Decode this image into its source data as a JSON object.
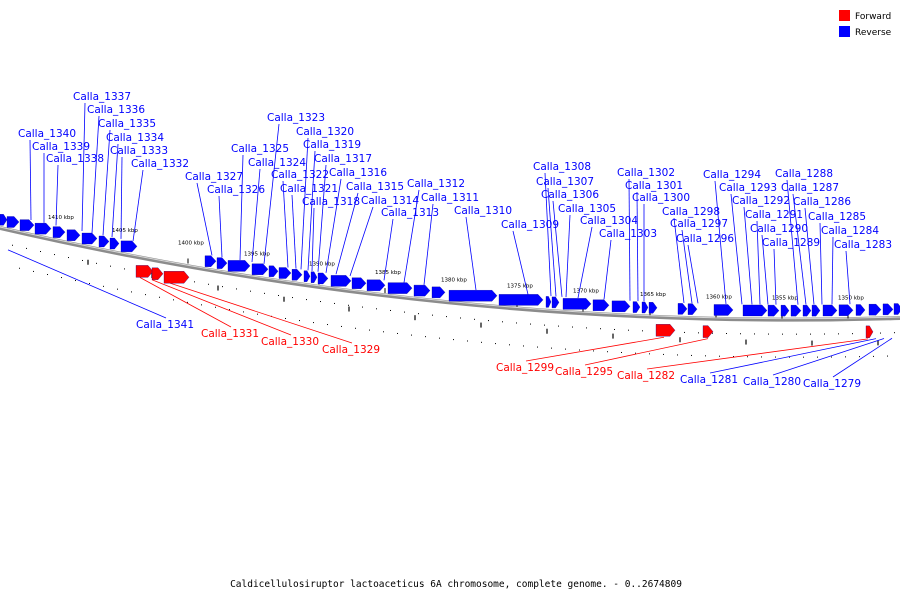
{
  "caption": "Caldicellulosiruptor lactoaceticus 6A chromosome, complete genome. - 0..2674809",
  "legend": [
    {
      "label": "Forward",
      "color": "#ff0000"
    },
    {
      "label": "Reverse",
      "color": "#0000ff"
    }
  ],
  "colors": {
    "forward": "#ff0000",
    "reverse": "#0000ff",
    "backbone": "#808080"
  },
  "kbp_labels": [
    "1410 kbp",
    "1405 kbp",
    "1400 kbp",
    "1395 kbp",
    "1390 kbp",
    "1385 kbp",
    "1380 kbp",
    "1375 kbp",
    "1370 kbp",
    "1365 kbp",
    "1360 kbp",
    "1355 kbp",
    "1350 kbp"
  ],
  "reverse_genes": [
    "Calla_1340",
    "Calla_1339",
    "Calla_1338",
    "Calla_1337",
    "Calla_1336",
    "Calla_1335",
    "Calla_1334",
    "Calla_1333",
    "Calla_1332",
    "Calla_1327",
    "Calla_1326",
    "Calla_1325",
    "Calla_1324",
    "Calla_1323",
    "Calla_1322",
    "Calla_1321",
    "Calla_1320",
    "Calla_1319",
    "Calla_1318",
    "Calla_1317",
    "Calla_1316",
    "Calla_1315",
    "Calla_1314",
    "Calla_1313",
    "Calla_1312",
    "Calla_1311",
    "Calla_1310",
    "Calla_1309",
    "Calla_1308",
    "Calla_1307",
    "Calla_1306",
    "Calla_1305",
    "Calla_1304",
    "Calla_1303",
    "Calla_1302",
    "Calla_1301",
    "Calla_1300",
    "Calla_1298",
    "Calla_1297",
    "Calla_1296",
    "Calla_1294",
    "Calla_1293",
    "Calla_1292",
    "Calla_1291",
    "Calla_1290",
    "Calla_1289",
    "Calla_1288",
    "Calla_1287",
    "Calla_1286",
    "Calla_1285",
    "Calla_1284",
    "Calla_1283"
  ],
  "bottom_genes": [
    {
      "name": "Calla_1341",
      "strand": "reverse"
    },
    {
      "name": "Calla_1331",
      "strand": "forward"
    },
    {
      "name": "Calla_1330",
      "strand": "forward"
    },
    {
      "name": "Calla_1329",
      "strand": "forward"
    },
    {
      "name": "Calla_1299",
      "strand": "forward"
    },
    {
      "name": "Calla_1295",
      "strand": "forward"
    },
    {
      "name": "Calla_1282",
      "strand": "forward"
    },
    {
      "name": "Calla_1281",
      "strand": "reverse"
    },
    {
      "name": "Calla_1280",
      "strand": "reverse"
    },
    {
      "name": "Calla_1279",
      "strand": "reverse"
    }
  ]
}
